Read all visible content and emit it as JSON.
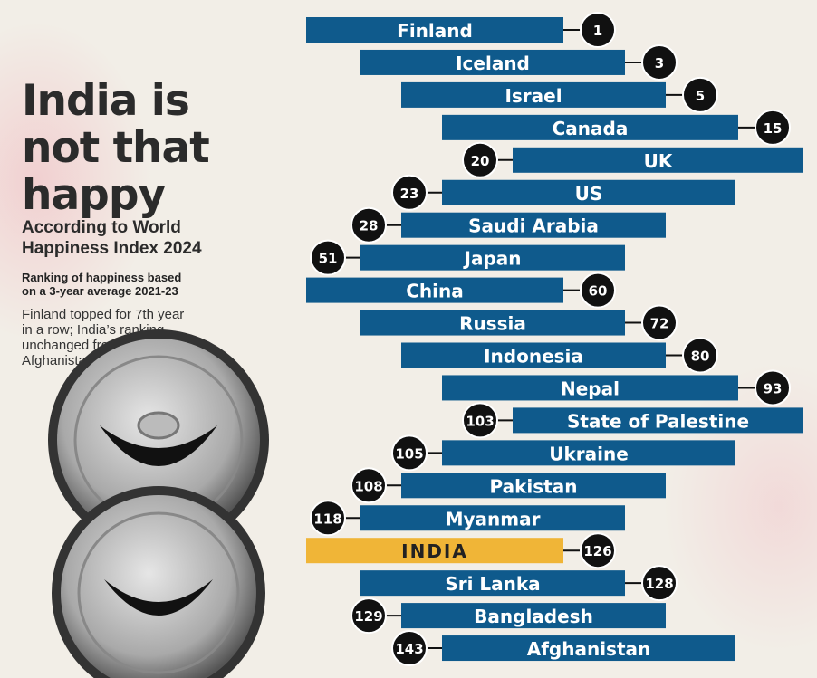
{
  "header": {
    "title_lines": [
      "India is",
      "not that",
      "happy"
    ],
    "subtitle_lines": [
      "According to World",
      "Happiness Index 2024"
    ],
    "basis_lines": [
      "Ranking of happiness based",
      "on a 3-year average 2021-23"
    ],
    "note_lines": [
      "Finland topped for 7th year",
      "in a row; India’s ranking",
      "unchanged from last year;",
      "Afghanistan at bottom again"
    ]
  },
  "rankings": [
    {
      "country": "Finland",
      "rank": "1"
    },
    {
      "country": "Iceland",
      "rank": "3"
    },
    {
      "country": "Israel",
      "rank": "5"
    },
    {
      "country": "Canada",
      "rank": "15"
    },
    {
      "country": "UK",
      "rank": "20"
    },
    {
      "country": "US",
      "rank": "23"
    },
    {
      "country": "Saudi Arabia",
      "rank": "28"
    },
    {
      "country": "Japan",
      "rank": "51"
    },
    {
      "country": "China",
      "rank": "60"
    },
    {
      "country": "Russia",
      "rank": "72"
    },
    {
      "country": "Indonesia",
      "rank": "80"
    },
    {
      "country": "Nepal",
      "rank": "93"
    },
    {
      "country": "State of Palestine",
      "rank": "103"
    },
    {
      "country": "Ukraine",
      "rank": "105"
    },
    {
      "country": "Pakistan",
      "rank": "108"
    },
    {
      "country": "Myanmar",
      "rank": "118"
    },
    {
      "country": "INDIA",
      "rank": "126"
    },
    {
      "country": "Sri Lanka",
      "rank": "128"
    },
    {
      "country": "Bangladesh",
      "rank": "129"
    },
    {
      "country": "Afghanistan",
      "rank": "143"
    }
  ]
}
